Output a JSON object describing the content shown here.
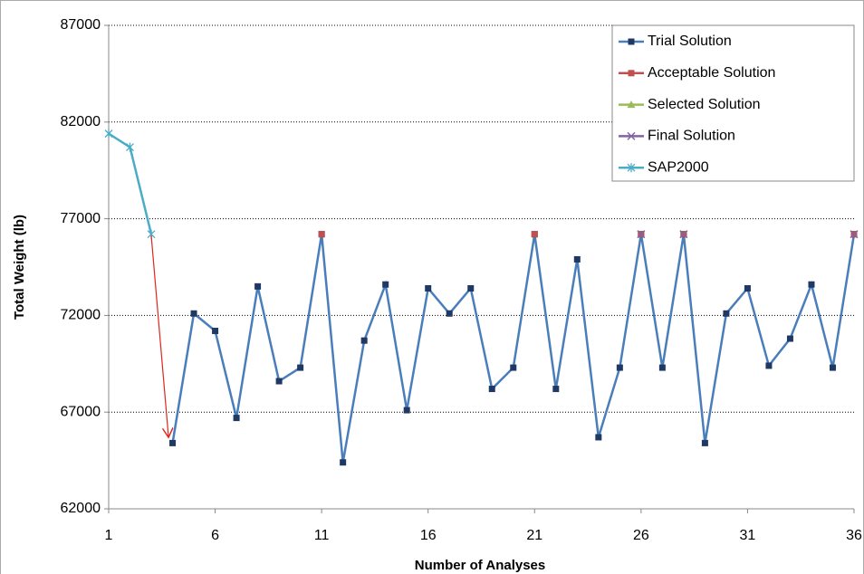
{
  "chart_data": {
    "type": "line",
    "x_label": "Number of Analyses",
    "y_label": "Total Weight (lb)",
    "xlim": [
      1,
      36
    ],
    "xticks": [
      1,
      6,
      11,
      16,
      21,
      26,
      31,
      36
    ],
    "ylim": [
      62000,
      87000
    ],
    "yticks": [
      62000,
      67000,
      72000,
      77000,
      82000,
      87000
    ],
    "grid": true,
    "legend": "top-right",
    "series": [
      {
        "name": "Trial Solution",
        "color": "#4a7ebb",
        "marker": "square",
        "marker_color": "#1f3864",
        "line": true,
        "x": [
          4,
          5,
          6,
          7,
          8,
          9,
          10,
          11,
          12,
          13,
          14,
          15,
          16,
          17,
          18,
          19,
          20,
          21,
          22,
          23,
          24,
          25,
          26,
          27,
          28,
          29,
          30,
          31,
          32,
          33,
          34,
          35,
          36
        ],
        "values": [
          65400,
          72100,
          71200,
          66700,
          73500,
          68600,
          69300,
          76200,
          64400,
          70700,
          73600,
          67100,
          73400,
          72100,
          73400,
          68200,
          69300,
          76200,
          68200,
          74900,
          65700,
          69300,
          76200,
          69300,
          76200,
          65400,
          72100,
          73400,
          69400,
          70800,
          73600,
          69300,
          76200
        ]
      },
      {
        "name": "Acceptable Solution",
        "color": "#c0504d",
        "marker": "square",
        "marker_color": "#c0504d",
        "line": false,
        "x": [
          11,
          21,
          26,
          28,
          36
        ],
        "values": [
          76200,
          76200,
          76200,
          76200,
          76200
        ]
      },
      {
        "name": "Selected Solution",
        "color": "#9bbb59",
        "marker": "triangle",
        "marker_color": "#9bbb59",
        "line": false,
        "x": [],
        "values": []
      },
      {
        "name": "Final Solution",
        "color": "#8064a2",
        "marker": "x",
        "marker_color": "#8064a2",
        "line": false,
        "x": [
          26,
          28,
          36
        ],
        "values": [
          76200,
          76200,
          76200
        ]
      },
      {
        "name": "SAP2000",
        "color": "#4bacc6",
        "marker": "star",
        "marker_color": "#4bacc6",
        "line": true,
        "x": [
          1,
          2,
          3
        ],
        "values": [
          81400,
          80700,
          76200
        ]
      }
    ]
  }
}
